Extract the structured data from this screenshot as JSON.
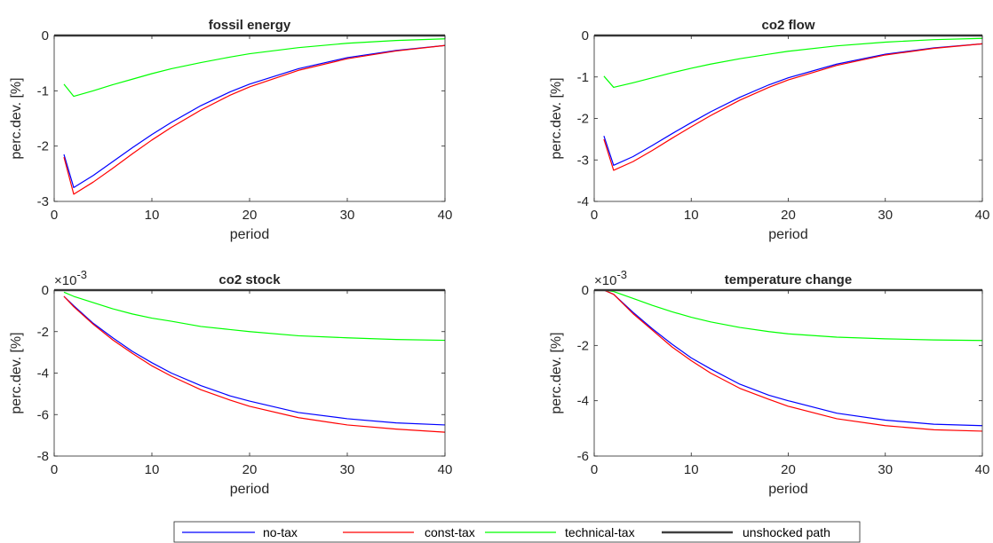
{
  "chart_data": [
    {
      "type": "line",
      "title": "fossil energy",
      "xlabel": "period",
      "ylabel": "perc.dev. [%]",
      "xlim": [
        0,
        40
      ],
      "ylim": [
        -3,
        0
      ],
      "xticks": [
        0,
        10,
        20,
        30,
        40
      ],
      "xtick_labels": [
        "0",
        "10",
        "20",
        "30",
        "40"
      ],
      "yticks": [
        -3,
        -2,
        -1,
        0
      ],
      "ytick_labels": [
        "-3",
        "-2",
        "-1",
        "0"
      ],
      "exponent_label": "",
      "grid": false,
      "series": [
        {
          "key": "no_tax",
          "x": [
            1,
            2,
            4,
            6,
            8,
            10,
            12,
            15,
            18,
            20,
            25,
            30,
            35,
            40
          ],
          "values": [
            -2.15,
            -2.75,
            -2.53,
            -2.28,
            -2.03,
            -1.79,
            -1.57,
            -1.27,
            -1.02,
            -0.88,
            -0.6,
            -0.4,
            -0.27,
            -0.18
          ]
        },
        {
          "key": "const_tax",
          "x": [
            1,
            2,
            4,
            6,
            8,
            10,
            12,
            15,
            18,
            20,
            25,
            30,
            35,
            40
          ],
          "values": [
            -2.2,
            -2.87,
            -2.65,
            -2.4,
            -2.14,
            -1.89,
            -1.66,
            -1.35,
            -1.08,
            -0.93,
            -0.63,
            -0.42,
            -0.28,
            -0.18
          ]
        },
        {
          "key": "technical_tax",
          "x": [
            1,
            2,
            4,
            6,
            8,
            10,
            12,
            15,
            18,
            20,
            25,
            30,
            35,
            40
          ],
          "values": [
            -0.88,
            -1.1,
            -1.0,
            -0.89,
            -0.79,
            -0.69,
            -0.6,
            -0.49,
            -0.39,
            -0.33,
            -0.22,
            -0.14,
            -0.09,
            -0.06
          ]
        },
        {
          "key": "unshocked",
          "x": [
            0,
            40
          ],
          "values": [
            0,
            0
          ]
        }
      ]
    },
    {
      "type": "line",
      "title": "co2 flow",
      "xlabel": "period",
      "ylabel": "perc.dev. [%]",
      "xlim": [
        0,
        40
      ],
      "ylim": [
        -4,
        0
      ],
      "xticks": [
        0,
        10,
        20,
        30,
        40
      ],
      "xtick_labels": [
        "0",
        "10",
        "20",
        "30",
        "40"
      ],
      "yticks": [
        -4,
        -3,
        -2,
        -1,
        0
      ],
      "ytick_labels": [
        "-4",
        "-3",
        "-2",
        "-1",
        "0"
      ],
      "exponent_label": "",
      "grid": false,
      "series": [
        {
          "key": "no_tax",
          "x": [
            1,
            2,
            4,
            6,
            8,
            10,
            12,
            15,
            18,
            20,
            25,
            30,
            35,
            40
          ],
          "values": [
            -2.42,
            -3.13,
            -2.92,
            -2.65,
            -2.37,
            -2.1,
            -1.84,
            -1.49,
            -1.19,
            -1.02,
            -0.69,
            -0.45,
            -0.3,
            -0.2
          ]
        },
        {
          "key": "const_tax",
          "x": [
            1,
            2,
            4,
            6,
            8,
            10,
            12,
            15,
            18,
            20,
            25,
            30,
            35,
            40
          ],
          "values": [
            -2.5,
            -3.25,
            -3.04,
            -2.77,
            -2.48,
            -2.2,
            -1.93,
            -1.56,
            -1.25,
            -1.07,
            -0.72,
            -0.47,
            -0.31,
            -0.2
          ]
        },
        {
          "key": "technical_tax",
          "x": [
            1,
            2,
            4,
            6,
            8,
            10,
            12,
            15,
            18,
            20,
            25,
            30,
            35,
            40
          ],
          "values": [
            -0.98,
            -1.25,
            -1.14,
            -1.02,
            -0.9,
            -0.79,
            -0.69,
            -0.56,
            -0.45,
            -0.38,
            -0.25,
            -0.16,
            -0.1,
            -0.07
          ]
        },
        {
          "key": "unshocked",
          "x": [
            0,
            40
          ],
          "values": [
            0,
            0
          ]
        }
      ]
    },
    {
      "type": "line",
      "title": "co2 stock",
      "xlabel": "period",
      "ylabel": "perc.dev. [%]",
      "xlim": [
        0,
        40
      ],
      "ylim": [
        -8,
        0
      ],
      "xticks": [
        0,
        10,
        20,
        30,
        40
      ],
      "xtick_labels": [
        "0",
        "10",
        "20",
        "30",
        "40"
      ],
      "yticks": [
        -8,
        -6,
        -4,
        -2,
        0
      ],
      "ytick_labels": [
        "-8",
        "-6",
        "-4",
        "-2",
        "0"
      ],
      "exponent_label": "×10",
      "exponent_power": "-3",
      "grid": false,
      "series": [
        {
          "key": "no_tax",
          "x": [
            1,
            2,
            4,
            6,
            8,
            10,
            12,
            15,
            18,
            20,
            25,
            30,
            35,
            40
          ],
          "values": [
            -0.3,
            -0.75,
            -1.6,
            -2.3,
            -2.95,
            -3.5,
            -4.0,
            -4.6,
            -5.1,
            -5.35,
            -5.9,
            -6.2,
            -6.4,
            -6.5
          ]
        },
        {
          "key": "const_tax",
          "x": [
            1,
            2,
            4,
            6,
            8,
            10,
            12,
            15,
            18,
            20,
            25,
            30,
            35,
            40
          ],
          "values": [
            -0.3,
            -0.8,
            -1.65,
            -2.4,
            -3.05,
            -3.65,
            -4.15,
            -4.8,
            -5.3,
            -5.6,
            -6.15,
            -6.5,
            -6.7,
            -6.85
          ]
        },
        {
          "key": "technical_tax",
          "x": [
            1,
            2,
            4,
            6,
            8,
            10,
            12,
            15,
            18,
            20,
            25,
            30,
            35,
            40
          ],
          "values": [
            -0.1,
            -0.3,
            -0.6,
            -0.9,
            -1.15,
            -1.35,
            -1.5,
            -1.75,
            -1.9,
            -2.0,
            -2.2,
            -2.3,
            -2.38,
            -2.42
          ]
        },
        {
          "key": "unshocked",
          "x": [
            0,
            40
          ],
          "values": [
            0,
            0
          ]
        }
      ]
    },
    {
      "type": "line",
      "title": "temperature change",
      "xlabel": "period",
      "ylabel": "perc.dev. [%]",
      "xlim": [
        0,
        40
      ],
      "ylim": [
        -6,
        0
      ],
      "xticks": [
        0,
        10,
        20,
        30,
        40
      ],
      "xtick_labels": [
        "0",
        "10",
        "20",
        "30",
        "40"
      ],
      "yticks": [
        -6,
        -4,
        -2,
        0
      ],
      "ytick_labels": [
        "-6",
        "-4",
        "-2",
        "0"
      ],
      "exponent_label": "×10",
      "exponent_power": "-3",
      "grid": false,
      "series": [
        {
          "key": "no_tax",
          "x": [
            1,
            2,
            4,
            6,
            8,
            10,
            12,
            15,
            18,
            20,
            25,
            30,
            35,
            40
          ],
          "values": [
            0,
            -0.15,
            -0.8,
            -1.4,
            -1.95,
            -2.45,
            -2.85,
            -3.4,
            -3.8,
            -4.0,
            -4.45,
            -4.7,
            -4.85,
            -4.9
          ]
        },
        {
          "key": "const_tax",
          "x": [
            1,
            2,
            4,
            6,
            8,
            10,
            12,
            15,
            18,
            20,
            25,
            30,
            35,
            40
          ],
          "values": [
            0,
            -0.15,
            -0.85,
            -1.45,
            -2.05,
            -2.55,
            -3.0,
            -3.55,
            -3.95,
            -4.2,
            -4.65,
            -4.9,
            -5.05,
            -5.1
          ]
        },
        {
          "key": "technical_tax",
          "x": [
            1,
            2,
            4,
            6,
            8,
            10,
            12,
            15,
            18,
            20,
            25,
            30,
            35,
            40
          ],
          "values": [
            0,
            -0.05,
            -0.3,
            -0.55,
            -0.78,
            -0.98,
            -1.15,
            -1.35,
            -1.5,
            -1.58,
            -1.7,
            -1.76,
            -1.8,
            -1.82
          ]
        },
        {
          "key": "unshocked",
          "x": [
            0,
            40
          ],
          "values": [
            0,
            0
          ]
        }
      ]
    }
  ],
  "legend": {
    "placement": "bottom-center",
    "entries": [
      {
        "key": "no_tax",
        "label": "no-tax",
        "color": "#0000ff"
      },
      {
        "key": "const_tax",
        "label": "const-tax",
        "color": "#ff0000"
      },
      {
        "key": "technical_tax",
        "label": "technical-tax",
        "color": "#00ff00"
      },
      {
        "key": "unshocked",
        "label": "unshocked path",
        "color": "#404040"
      }
    ]
  }
}
